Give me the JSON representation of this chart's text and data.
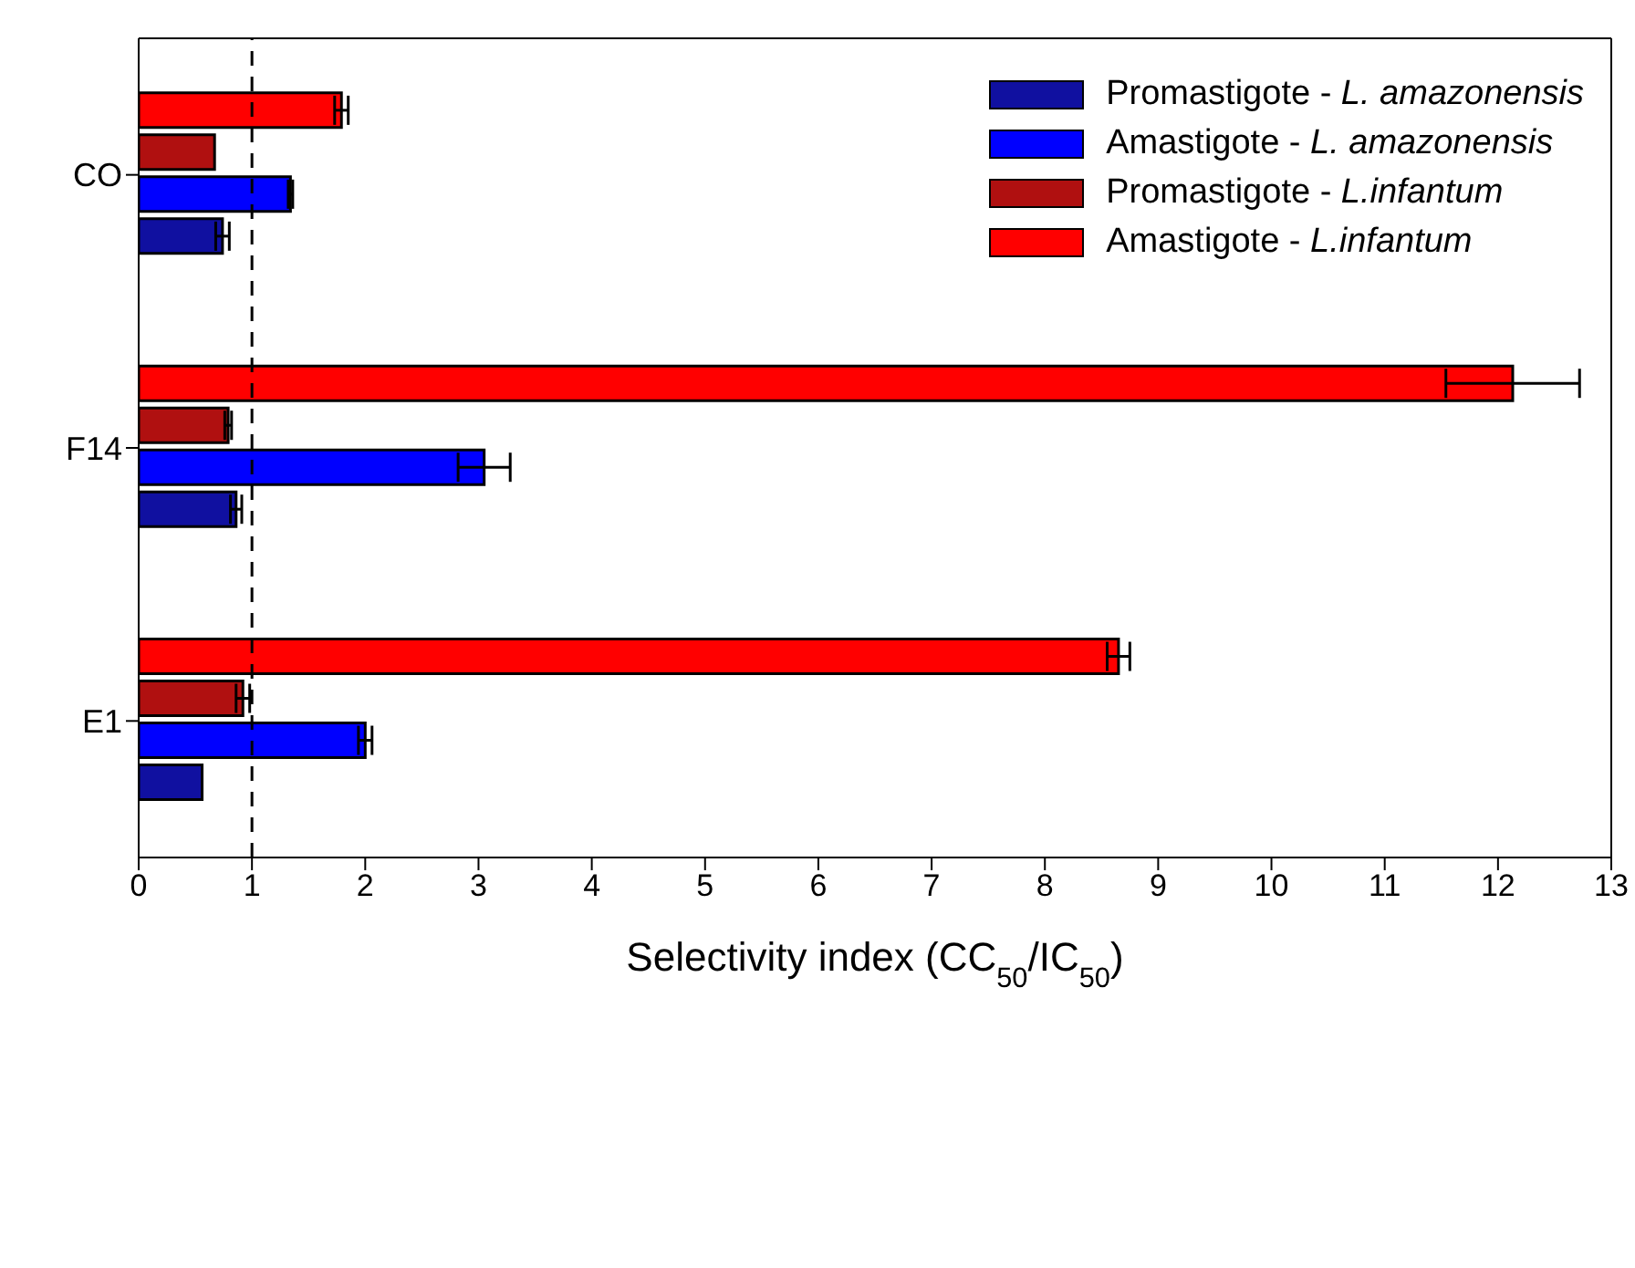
{
  "chart_data": {
    "type": "bar",
    "orientation": "horizontal",
    "xlabel": "Selectivity index (CC$_{50}$/IC$_{50}$)",
    "categories": [
      "CO",
      "F14",
      "E1"
    ],
    "series": [
      {
        "name": "Promastigote - L. amazonensis",
        "color": "#1010a0",
        "values": [
          0.74,
          0.86,
          0.56
        ],
        "errors": [
          0.06,
          0.05,
          null
        ]
      },
      {
        "name": "Amastigote - L. amazonensis",
        "color": "#0000ff",
        "values": [
          1.34,
          3.05,
          2.0
        ],
        "errors": [
          0.02,
          0.23,
          0.06
        ]
      },
      {
        "name": "Promastigote - L.infantum",
        "color": "#b01010",
        "values": [
          0.67,
          0.79,
          0.92
        ],
        "errors": [
          null,
          0.03,
          0.06
        ]
      },
      {
        "name": "Amastigote - L.infantum",
        "color": "#ff0000",
        "values": [
          1.79,
          12.13,
          8.65
        ],
        "errors": [
          0.06,
          0.59,
          0.1
        ]
      }
    ],
    "xlim": [
      0,
      13
    ],
    "xticks": [
      0,
      1,
      2,
      3,
      4,
      5,
      6,
      7,
      8,
      9,
      10,
      11,
      12,
      13
    ],
    "ref_lines": [
      {
        "axis": "x",
        "value": 1,
        "line_style": "dashed"
      }
    ],
    "legend": "top right",
    "grid": false
  }
}
